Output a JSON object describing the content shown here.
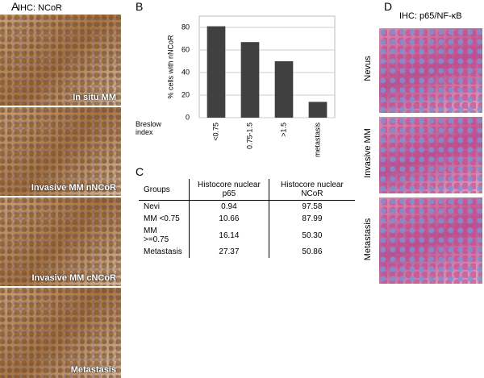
{
  "panels": {
    "A": {
      "label": "A",
      "title": "IHC: NCoR",
      "images": [
        "In situ MM",
        "Invasive MM nNCoR",
        "Invasive MM cNCoR",
        "Metastasis"
      ]
    },
    "B": {
      "label": "B"
    },
    "C": {
      "label": "C"
    },
    "D": {
      "label": "D",
      "title": "IHC: p65/NF-κB",
      "images": [
        "Nevus",
        "Invasive MM",
        "Metastasis"
      ]
    }
  },
  "chart_data": {
    "type": "bar",
    "ylabel": "% cells with nNCoR",
    "xlabel": "Breslow index",
    "categories": [
      "<0.75",
      "0.75-1.5",
      ">1.5",
      "metastasis"
    ],
    "values": [
      81,
      67,
      50,
      14
    ],
    "color": "#404040",
    "ylim": [
      0,
      90
    ],
    "yticks": [
      0,
      20,
      40,
      60,
      80
    ],
    "grid": true
  },
  "table": {
    "header": [
      "Groups",
      "Histocore nuclear p65",
      "Histocore nuclear NCoR"
    ],
    "rows": [
      [
        "Nevi",
        "0.94",
        "97.58"
      ],
      [
        "MM <0.75",
        "10.66",
        "87.99"
      ],
      [
        "MM >=0.75",
        "16.14",
        "50.30"
      ],
      [
        "Metastasis",
        "27.37",
        "50.86"
      ]
    ]
  }
}
